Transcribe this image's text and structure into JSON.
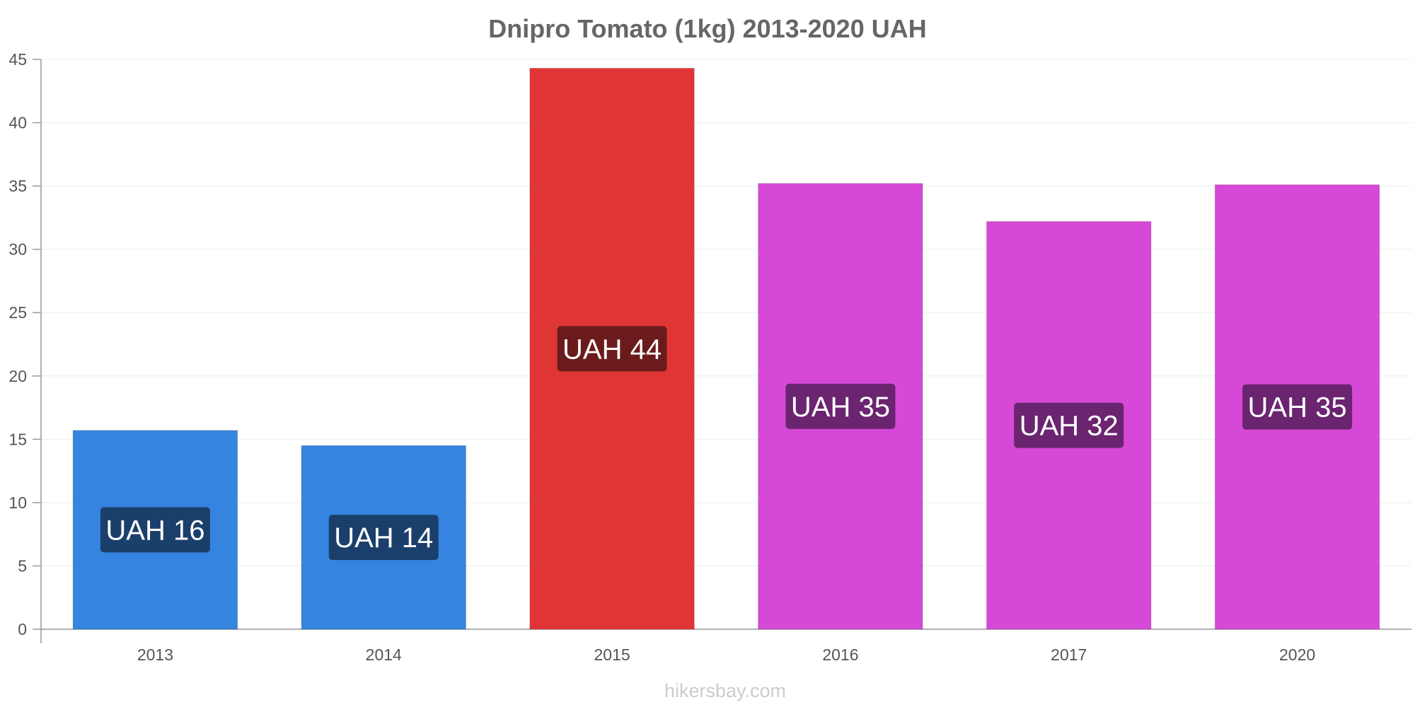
{
  "chart_data": {
    "type": "bar",
    "title": "Dnipro Tomato (1kg) 2013-2020 UAH",
    "categories": [
      "2013",
      "2014",
      "2015",
      "2016",
      "2017",
      "2020"
    ],
    "values": [
      15.7,
      14.5,
      44.3,
      35.2,
      32.2,
      35.1
    ],
    "data_labels": [
      "UAH 16",
      "UAH 14",
      "UAH 44",
      "UAH 35",
      "UAH 32",
      "UAH 35"
    ],
    "bar_colors": [
      "#3584e0",
      "#3584e0",
      "#e03535",
      "#d649d6",
      "#d649d6",
      "#d649d6"
    ],
    "label_bg_colors": [
      "#1b3f6b",
      "#1b3f6b",
      "#6b1b1b",
      "#6b2470",
      "#6b2470",
      "#6b2470"
    ],
    "ylim": [
      0,
      45
    ],
    "yticks": [
      0,
      5,
      10,
      15,
      20,
      25,
      30,
      35,
      40,
      45
    ],
    "xlabel": "",
    "ylabel": "",
    "grid": true,
    "legend": "none"
  },
  "footer": {
    "source": "hikersbay.com"
  },
  "colors": {
    "gridline": "#eeeeee",
    "axis": "#999999",
    "title": "#666666"
  }
}
